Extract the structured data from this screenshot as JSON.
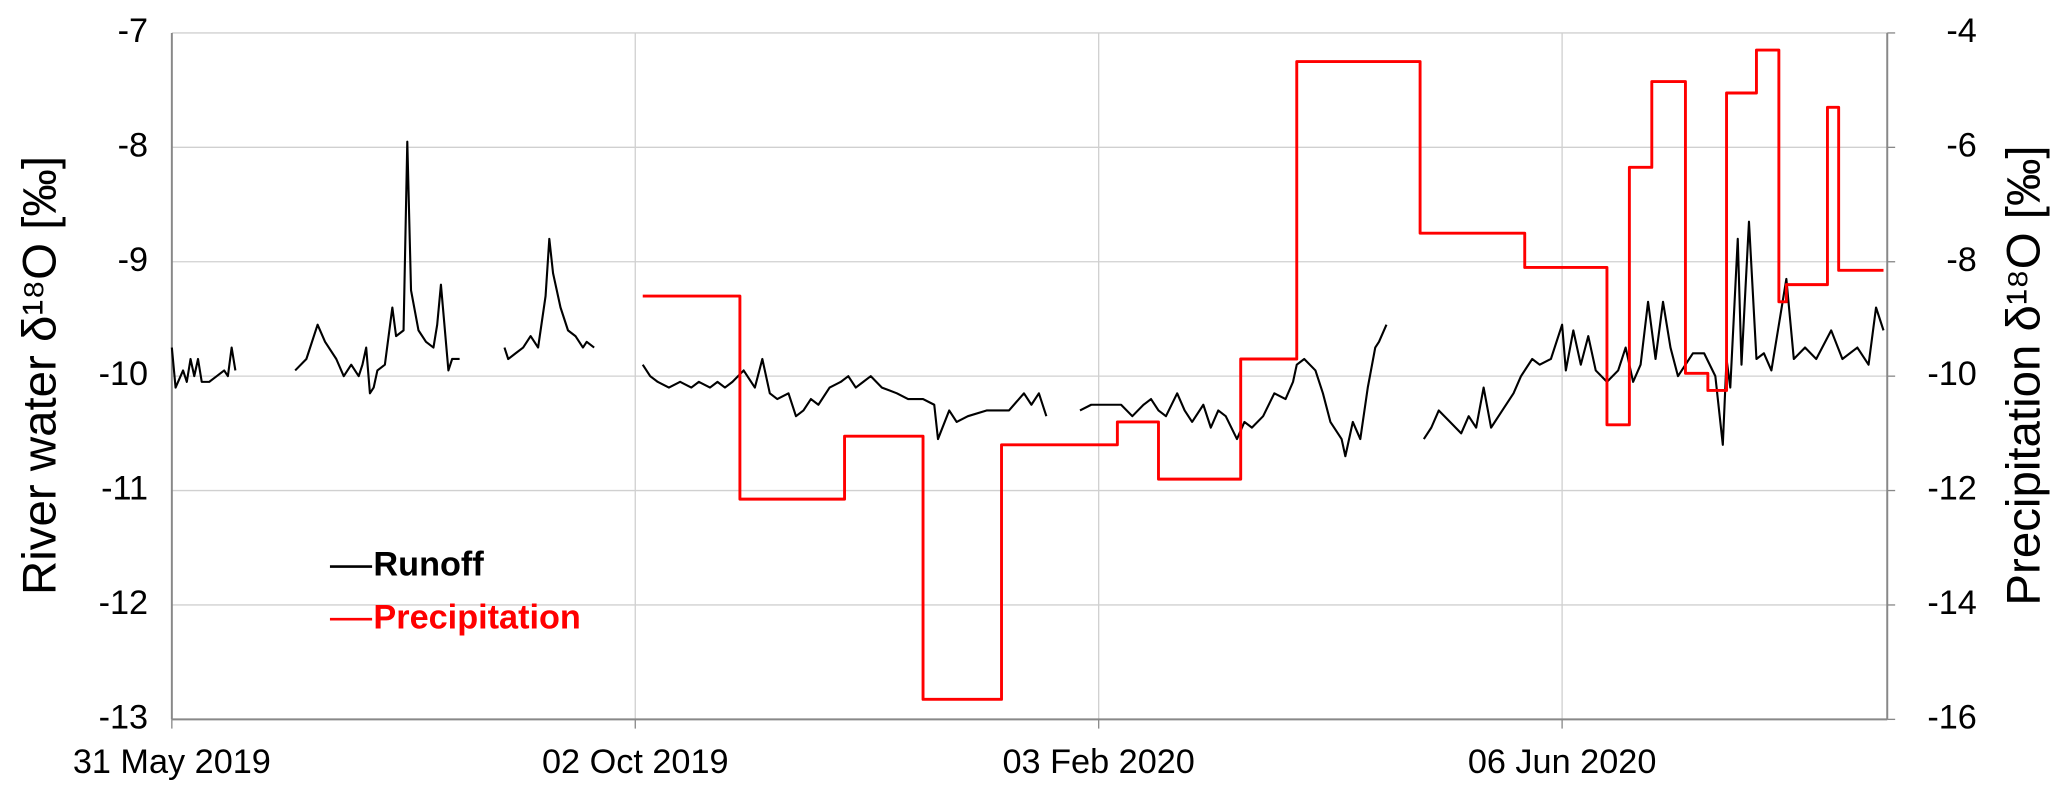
{
  "chart_data": {
    "type": "line",
    "y_label": "River water δ¹⁸O [‰]",
    "y2_label": "Precipitation δ¹⁸O [‰]",
    "xlim": [
      "2019-05-31",
      "2020-09-01"
    ],
    "xticks": [
      {
        "value": "2019-05-31",
        "label": "31 May 2019"
      },
      {
        "value": "2019-10-02",
        "label": "02 Oct 2019"
      },
      {
        "value": "2020-02-03",
        "label": "03 Feb 2020"
      },
      {
        "value": "2020-06-06",
        "label": "06 Jun 2020"
      }
    ],
    "ylim": [
      -13,
      -7
    ],
    "yticks": [
      -13,
      -12,
      -11,
      -10,
      -9,
      -8,
      -7
    ],
    "y2lim": [
      -16,
      -4
    ],
    "y2ticks": [
      -16,
      -14,
      -12,
      -10,
      -8,
      -6,
      -4
    ],
    "grid": true,
    "legend": "lower left",
    "series": [
      {
        "name": "Runoff",
        "color": "#000000",
        "axis": "y",
        "x": [
          "2019-05-31",
          "2019-06-01",
          "2019-06-03",
          "2019-06-04",
          "2019-06-05",
          "2019-06-06",
          "2019-06-07",
          "2019-06-08",
          "2019-06-10",
          "2019-06-12",
          "2019-06-14",
          "2019-06-15",
          "2019-06-16",
          "2019-06-17",
          "2019-06-25",
          "2019-07-03",
          "2019-07-06",
          "2019-07-09",
          "2019-07-11",
          "2019-07-14",
          "2019-07-16",
          "2019-07-18",
          "2019-07-20",
          "2019-07-21",
          "2019-07-22",
          "2019-07-23",
          "2019-07-24",
          "2019-07-25",
          "2019-07-27",
          "2019-07-29",
          "2019-07-30",
          "2019-08-01",
          "2019-08-02",
          "2019-08-03",
          "2019-08-05",
          "2019-08-07",
          "2019-08-09",
          "2019-08-10",
          "2019-08-11",
          "2019-08-13",
          "2019-08-14",
          "2019-08-16",
          "2019-08-21",
          "2019-08-28",
          "2019-08-29",
          "2019-08-31",
          "2019-09-02",
          "2019-09-04",
          "2019-09-06",
          "2019-09-08",
          "2019-09-09",
          "2019-09-10",
          "2019-09-12",
          "2019-09-14",
          "2019-09-16",
          "2019-09-18",
          "2019-09-19",
          "2019-09-21",
          "2019-09-27",
          "2019-10-04",
          "2019-10-06",
          "2019-10-08",
          "2019-10-11",
          "2019-10-14",
          "2019-10-17",
          "2019-10-19",
          "2019-10-22",
          "2019-10-24",
          "2019-10-26",
          "2019-10-28",
          "2019-10-31",
          "2019-11-03",
          "2019-11-05",
          "2019-11-07",
          "2019-11-09",
          "2019-11-12",
          "2019-11-14",
          "2019-11-16",
          "2019-11-18",
          "2019-11-20",
          "2019-11-23",
          "2019-11-26",
          "2019-11-28",
          "2019-11-30",
          "2019-12-02",
          "2019-12-04",
          "2019-12-07",
          "2019-12-11",
          "2019-12-14",
          "2019-12-18",
          "2019-12-21",
          "2019-12-22",
          "2019-12-25",
          "2019-12-27",
          "2019-12-30",
          "2020-01-04",
          "2020-01-10",
          "2020-01-14",
          "2020-01-16",
          "2020-01-18",
          "2020-01-20",
          "2020-01-24",
          "2020-01-29",
          "2020-02-01",
          "2020-02-05",
          "2020-02-09",
          "2020-02-12",
          "2020-02-15",
          "2020-02-17",
          "2020-02-19",
          "2020-02-21",
          "2020-02-24",
          "2020-02-26",
          "2020-02-28",
          "2020-03-02",
          "2020-03-04",
          "2020-03-06",
          "2020-03-08",
          "2020-03-11",
          "2020-03-13",
          "2020-03-15",
          "2020-03-18",
          "2020-03-21",
          "2020-03-24",
          "2020-03-26",
          "2020-03-27",
          "2020-03-29",
          "2020-04-01",
          "2020-04-03",
          "2020-04-05",
          "2020-04-08",
          "2020-04-09",
          "2020-04-11",
          "2020-04-13",
          "2020-04-15",
          "2020-04-17",
          "2020-04-18",
          "2020-04-20",
          "2020-04-25",
          "2020-04-30",
          "2020-05-02",
          "2020-05-04",
          "2020-05-07",
          "2020-05-10",
          "2020-05-12",
          "2020-05-14",
          "2020-05-16",
          "2020-05-18",
          "2020-05-21",
          "2020-05-24",
          "2020-05-26",
          "2020-05-29",
          "2020-05-31",
          "2020-06-03",
          "2020-06-06",
          "2020-06-07",
          "2020-06-09",
          "2020-06-11",
          "2020-06-13",
          "2020-06-15",
          "2020-06-18",
          "2020-06-21",
          "2020-06-23",
          "2020-06-25",
          "2020-06-27",
          "2020-06-29",
          "2020-07-01",
          "2020-07-03",
          "2020-07-05",
          "2020-07-07",
          "2020-07-11",
          "2020-07-14",
          "2020-07-17",
          "2020-07-19",
          "2020-07-20",
          "2020-07-21",
          "2020-07-23",
          "2020-07-24",
          "2020-07-26",
          "2020-07-28",
          "2020-07-30",
          "2020-08-01",
          "2020-08-05",
          "2020-08-07",
          "2020-08-10",
          "2020-08-13",
          "2020-08-17",
          "2020-08-20",
          "2020-08-24",
          "2020-08-27",
          "2020-08-29",
          "2020-08-31"
        ],
        "values": [
          -9.75,
          -10.1,
          -9.95,
          -10.05,
          -9.85,
          -10.0,
          -9.85,
          -10.05,
          -10.05,
          -10.0,
          -9.95,
          -10.0,
          -9.75,
          -9.95,
          null,
          -9.95,
          -9.85,
          -9.55,
          -9.7,
          -9.85,
          -10.0,
          -9.9,
          -10.0,
          -9.9,
          -9.75,
          -10.15,
          -10.1,
          -9.95,
          -9.9,
          -9.4,
          -9.65,
          -9.6,
          -7.95,
          -9.25,
          -9.6,
          -9.7,
          -9.75,
          -9.55,
          -9.2,
          -9.95,
          -9.85,
          -9.85,
          null,
          -9.75,
          -9.85,
          -9.8,
          -9.75,
          -9.65,
          -9.75,
          -9.3,
          -8.8,
          -9.1,
          -9.4,
          -9.6,
          -9.65,
          -9.75,
          -9.7,
          -9.75,
          null,
          -9.9,
          -10.0,
          -10.05,
          -10.1,
          -10.05,
          -10.1,
          -10.05,
          -10.1,
          -10.05,
          -10.1,
          -10.05,
          -9.95,
          -10.1,
          -9.85,
          -10.15,
          -10.2,
          -10.15,
          -10.35,
          -10.3,
          -10.2,
          -10.25,
          -10.1,
          -10.05,
          -10.0,
          -10.1,
          -10.05,
          -10.0,
          -10.1,
          -10.15,
          -10.2,
          -10.2,
          -10.25,
          -10.55,
          -10.3,
          -10.4,
          -10.35,
          -10.3,
          -10.3,
          -10.15,
          -10.25,
          -10.15,
          -10.35,
          null,
          -10.3,
          -10.25,
          -10.25,
          -10.25,
          -10.35,
          -10.25,
          -10.2,
          -10.3,
          -10.35,
          -10.15,
          -10.3,
          -10.4,
          -10.25,
          -10.45,
          -10.3,
          -10.35,
          -10.55,
          -10.4,
          -10.45,
          -10.35,
          -10.15,
          -10.2,
          -10.05,
          -9.9,
          -9.85,
          -9.95,
          -10.15,
          -10.4,
          -10.55,
          -10.7,
          -10.4,
          -10.55,
          -10.1,
          -9.75,
          -9.7,
          -9.55,
          null,
          -10.55,
          -10.45,
          -10.3,
          -10.4,
          -10.5,
          -10.35,
          -10.45,
          -10.1,
          -10.45,
          -10.3,
          -10.15,
          -10.0,
          -9.85,
          -9.9,
          -9.85,
          -9.55,
          -9.95,
          -9.6,
          -9.9,
          -9.65,
          -9.95,
          -10.05,
          -9.95,
          -9.75,
          -10.05,
          -9.9,
          -9.35,
          -9.85,
          -9.35,
          -9.75,
          -10.0,
          -9.8,
          -9.8,
          -10.0,
          -10.6,
          -9.85,
          -10.1,
          -8.8,
          -9.9,
          -8.65,
          -9.85,
          -9.8,
          -9.95,
          -9.15,
          -9.85,
          -9.75,
          -9.85,
          -9.6,
          -9.85,
          -9.75,
          -9.9,
          -9.4,
          -9.6
        ]
      },
      {
        "name": "Precipitation",
        "color": "#ff0000",
        "axis": "y2",
        "step": "post",
        "x": [
          "2019-10-04",
          "2019-10-30",
          "2019-11-27",
          "2019-12-18",
          "2020-01-08",
          "2020-02-08",
          "2020-02-19",
          "2020-03-12",
          "2020-03-27",
          "2020-04-29",
          "2020-05-27",
          "2020-06-18",
          "2020-06-24",
          "2020-06-30",
          "2020-07-09",
          "2020-07-15",
          "2020-07-20",
          "2020-07-28",
          "2020-08-03",
          "2020-08-05",
          "2020-08-16",
          "2020-08-19",
          "2020-08-31"
        ],
        "values": [
          -8.6,
          -12.15,
          -11.05,
          -15.65,
          -11.2,
          -10.8,
          -11.8,
          -9.7,
          -4.5,
          -7.5,
          -8.1,
          -10.85,
          -6.35,
          -4.85,
          -9.95,
          -10.25,
          -5.05,
          -4.3,
          -8.7,
          -8.4,
          -5.3,
          -8.15,
          -8.15
        ]
      }
    ]
  }
}
